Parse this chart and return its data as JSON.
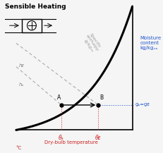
{
  "title": "Sensible Heating",
  "bg_color": "#f5f5f5",
  "curve_color": "#000000",
  "axis_color": "#000000",
  "point_A": [
    0.42,
    0.3
  ],
  "point_B": [
    0.68,
    0.3
  ],
  "enthalpy_label": "Specific\nenthalpy\nkJ/kgₓₐ",
  "enthalpy_color": "#999999",
  "moisture_label": "Moisture\ncontent\nkg/kgₓₐ",
  "moisture_color": "#2255cc",
  "xlabel": "Dry-bulb temperature",
  "xlabel2": "°C",
  "xlabel_color": "#cc2222",
  "theta_a_label": "θₐ",
  "theta_b_label": "θᴇ",
  "g_label": "gₐ=gᴇ",
  "h_a_label": "hₐ",
  "h_b_label": "hᴇ",
  "dashed_color": "#aaaaaa",
  "arrow_color": "#000000",
  "dotted_red_color": "#cc2222",
  "dotted_blue_color": "#2255cc"
}
